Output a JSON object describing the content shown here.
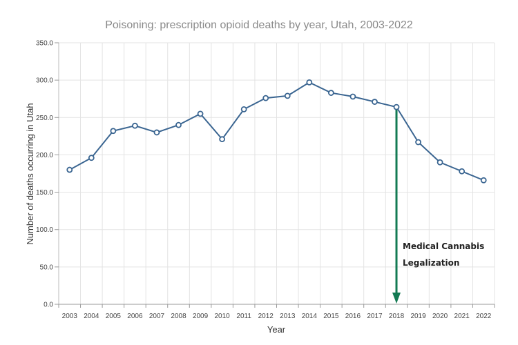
{
  "chart_data": {
    "type": "line",
    "title": "Poisoning: prescription opioid deaths by year, Utah, 2003-2022",
    "xlabel": "Year",
    "ylabel": "Number of deaths occurring in Utah",
    "categories": [
      "2003",
      "2004",
      "2005",
      "2006",
      "2007",
      "2008",
      "2009",
      "2010",
      "2011",
      "2012",
      "2013",
      "2014",
      "2015",
      "2016",
      "2017",
      "2018",
      "2019",
      "2020",
      "2021",
      "2022"
    ],
    "series": [
      {
        "name": "Prescription opioid deaths",
        "color": "#3a6591",
        "values": [
          180,
          196,
          232,
          239,
          230,
          240,
          255,
          221,
          261,
          276,
          279,
          297,
          283,
          278,
          271,
          264,
          217,
          190,
          178,
          166
        ]
      }
    ],
    "ylim": [
      0,
      350
    ],
    "yticks": [
      0,
      50,
      100,
      150,
      200,
      250,
      300,
      350
    ],
    "ytick_labels": [
      "0.0",
      "50.0",
      "100.0",
      "150.0",
      "200.0",
      "250.0",
      "300.0",
      "350.0"
    ],
    "grid": true,
    "legend": "none",
    "annotations": [
      {
        "text_lines": [
          "Medical Cannabis",
          "Legalization"
        ],
        "x": "2018",
        "type": "arrow-down",
        "color": "#137a53"
      }
    ]
  }
}
